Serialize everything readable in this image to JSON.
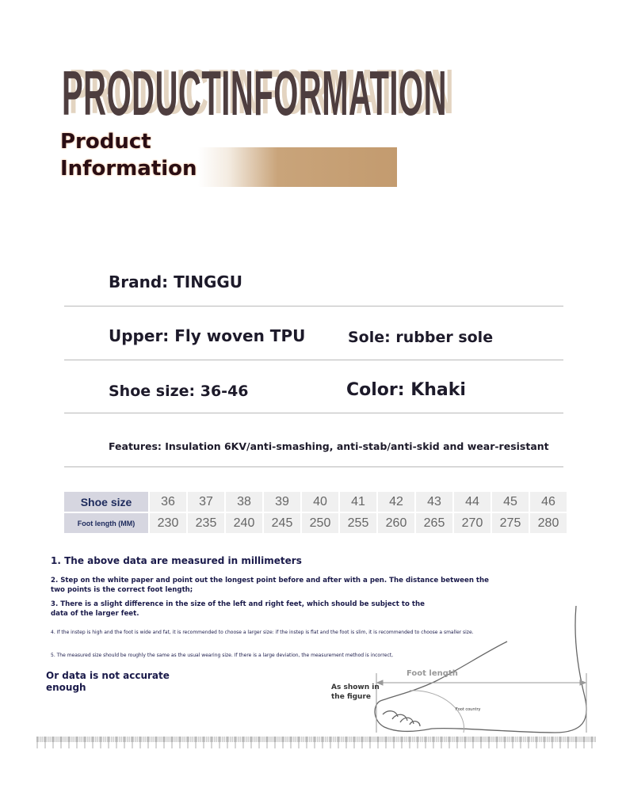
{
  "header": {
    "title": "PRODUCTINFORMATION",
    "subtitle_line1": "Product",
    "subtitle_line2": "Information"
  },
  "specs": {
    "brand": "Brand: TINGGU",
    "upper": "Upper: Fly woven TPU",
    "sole": "Sole: rubber sole",
    "shoe_size": "Shoe size: 36-46",
    "color": "Color: Khaki",
    "features": "Features: Insulation 6KV/anti-smashing, anti-stab/anti-skid and wear-resistant"
  },
  "size_table": {
    "row_headers": [
      "Shoe size",
      "Foot length (MM)"
    ],
    "sizes": [
      "36",
      "37",
      "38",
      "39",
      "40",
      "41",
      "42",
      "43",
      "44",
      "45",
      "46"
    ],
    "lengths": [
      "230",
      "235",
      "240",
      "245",
      "250",
      "255",
      "260",
      "265",
      "270",
      "275",
      "280"
    ]
  },
  "notes": {
    "n1": "1. The above data are measured in millimeters",
    "n2a": "2. Step on the white paper and point out the longest point before and after with a pen. The distance between the",
    "n2b": "two points is the correct foot length;",
    "n3a": "3. There is a slight difference in the size of the left and right feet, which should be subject to the",
    "n3b": "data of the larger feet.",
    "n4": "4. If the instep is high and the foot is wide and fat, it is recommended to choose a larger size: if the instep is flat and the foot is slim, it is recommended to choose a smaller size.",
    "n5": "5. The measured size should be roughly the same as the usual wearing size. If there is a large deviation, the measurement method is incorrect,",
    "n6a": "Or data is not accurate",
    "n6b": "enough"
  },
  "figure": {
    "foot_length": "Foot length",
    "as_shown_1": "As shown in",
    "as_shown_2": "the figure",
    "foot_country": "Foot country"
  },
  "colors": {
    "title": "#4e3e3f",
    "title_shadow": "#e3d4c1",
    "brush": "#c39b6f",
    "text_navy": "#1a1a4a"
  }
}
